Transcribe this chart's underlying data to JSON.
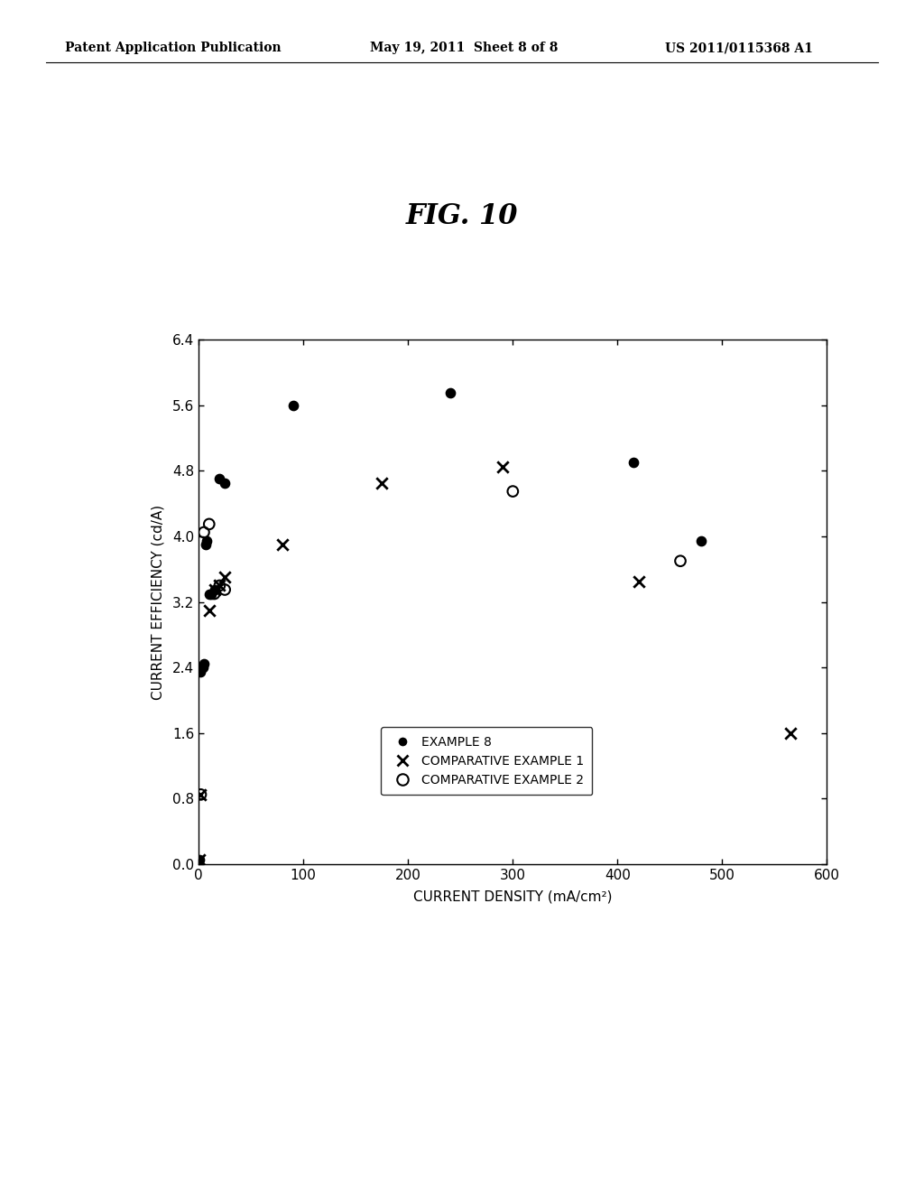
{
  "title": "FIG. 10",
  "xlabel": "CURRENT DENSITY (mA/cm²)",
  "ylabel": "CURRENT EFFICIENCY (cd/A)",
  "xlim": [
    0,
    600
  ],
  "ylim": [
    0,
    6.4
  ],
  "xticks": [
    0,
    100,
    200,
    300,
    400,
    500,
    600
  ],
  "yticks": [
    0,
    0.8,
    1.6,
    2.4,
    3.2,
    4.0,
    4.8,
    5.6,
    6.4
  ],
  "example8_x": [
    0.5,
    2,
    4,
    5,
    7,
    8,
    10,
    12,
    15,
    20,
    25,
    90,
    240,
    415,
    480
  ],
  "example8_y": [
    0.05,
    2.35,
    2.4,
    2.45,
    3.9,
    3.95,
    3.3,
    3.3,
    3.35,
    4.7,
    4.65,
    5.6,
    5.75,
    4.9,
    3.95
  ],
  "comp1_x": [
    0.5,
    2,
    10,
    15,
    20,
    25,
    80,
    175,
    290,
    420,
    565
  ],
  "comp1_y": [
    0.05,
    0.85,
    3.1,
    3.35,
    3.4,
    3.5,
    3.9,
    4.65,
    4.85,
    3.45,
    1.6
  ],
  "comp2_x": [
    2,
    5,
    10,
    15,
    20,
    25,
    300,
    460
  ],
  "comp2_y": [
    0.85,
    4.05,
    4.15,
    3.3,
    3.4,
    3.35,
    4.55,
    3.7
  ],
  "legend_labels": [
    "EXAMPLE 8",
    "COMPARATIVE EXAMPLE 1",
    "COMPARATIVE EXAMPLE 2"
  ],
  "header_left": "Patent Application Publication",
  "header_mid": "May 19, 2011  Sheet 8 of 8",
  "header_right": "US 2011/0115368 A1",
  "background_color": "#ffffff"
}
